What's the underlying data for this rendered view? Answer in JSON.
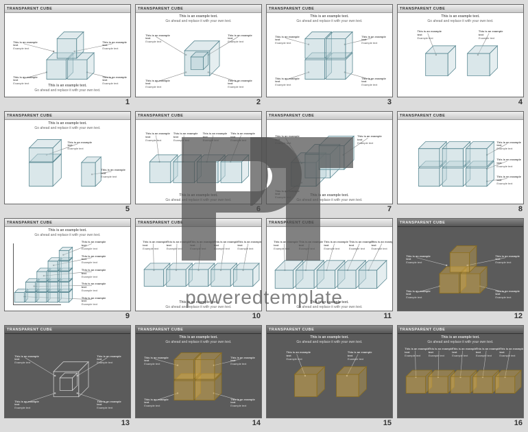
{
  "slide_title": "TRANSPARENT CUBE",
  "example_main": "This is an example text.",
  "example_sub": "Go ahead and replace it with your own text.",
  "callout_title": "This is an example text",
  "callout_sub": "Example text",
  "watermark_text": "poweredtemplate",
  "colors": {
    "cube_light_fill": "#bcd3d8",
    "cube_light_stroke": "#5c8a94",
    "cube_dark_stroke": "#cccccc",
    "cube_gold_fill": "#cfa84a",
    "cube_gold_stroke": "#8a6d1f",
    "callout_line": "#888888",
    "bg_light": "#ffffff",
    "bg_dark": "#5b5b5b"
  },
  "slides": [
    {
      "n": 1,
      "dark": false,
      "style": "light",
      "layout": "three_stack",
      "footer": "center"
    },
    {
      "n": 2,
      "dark": false,
      "style": "light",
      "layout": "single_nested",
      "footer": "top"
    },
    {
      "n": 3,
      "dark": false,
      "style": "light",
      "layout": "grid2x2",
      "footer": "top"
    },
    {
      "n": 4,
      "dark": false,
      "style": "light",
      "layout": "two_sep",
      "footer": "top"
    },
    {
      "n": 5,
      "dark": false,
      "style": "light",
      "layout": "pair_small",
      "footer": "top"
    },
    {
      "n": 6,
      "dark": false,
      "style": "light",
      "layout": "row4_front",
      "footer": "bottom"
    },
    {
      "n": 7,
      "dark": false,
      "style": "light",
      "layout": "row3_depth",
      "footer": "bottom"
    },
    {
      "n": 8,
      "dark": false,
      "style": "light",
      "layout": "block3x2",
      "footer": "none"
    },
    {
      "n": 9,
      "dark": false,
      "style": "light",
      "layout": "staircase",
      "footer": "top"
    },
    {
      "n": 10,
      "dark": false,
      "style": "light",
      "layout": "row5_flat",
      "footer": "bottom"
    },
    {
      "n": 11,
      "dark": false,
      "style": "light",
      "layout": "row5_deep",
      "footer": "bottom"
    },
    {
      "n": 12,
      "dark": true,
      "style": "gold",
      "layout": "three_stack",
      "footer": "none"
    },
    {
      "n": 13,
      "dark": true,
      "style": "wire",
      "layout": "single_nested",
      "footer": "none"
    },
    {
      "n": 14,
      "dark": true,
      "style": "gold",
      "layout": "grid2x2",
      "footer": "top"
    },
    {
      "n": 15,
      "dark": true,
      "style": "gold",
      "layout": "two_sep",
      "footer": "top"
    },
    {
      "n": 16,
      "dark": true,
      "style": "gold",
      "layout": "row5_flat",
      "footer": "top"
    }
  ]
}
